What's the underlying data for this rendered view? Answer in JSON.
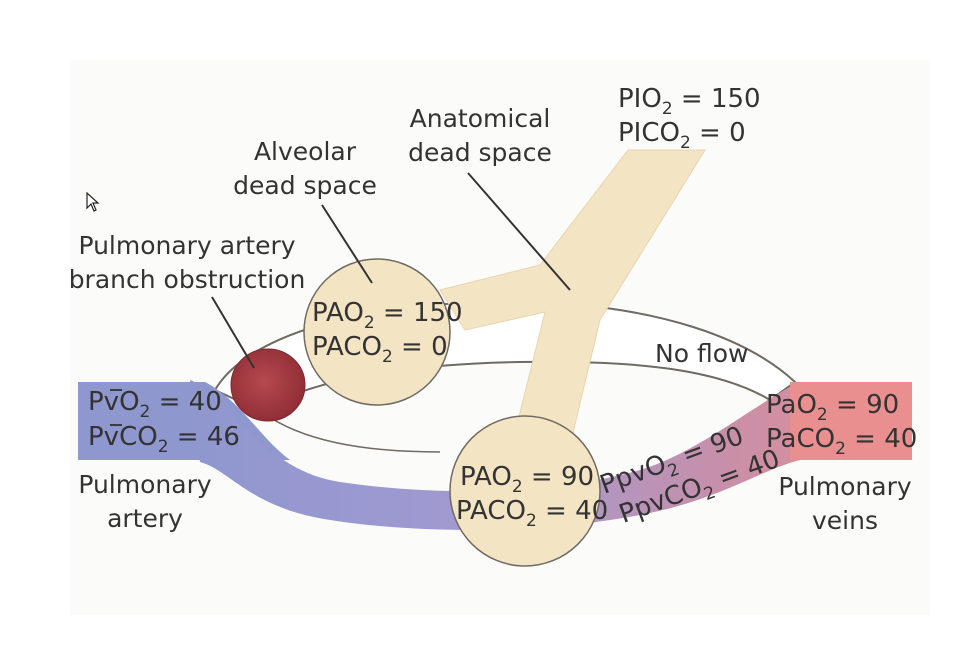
{
  "labels": {
    "anatomical_dead_space": [
      "Anatomical",
      "dead space"
    ],
    "alveolar_dead_space": [
      "Alveolar",
      "dead space"
    ],
    "obstruction": [
      "Pulmonary artery",
      "branch obstruction"
    ],
    "no_flow": "No flow",
    "pulmonary_artery": [
      "Pulmonary",
      "artery"
    ],
    "pulmonary_veins": [
      "Pulmonary",
      "veins"
    ]
  },
  "values": {
    "inspired": {
      "o2": [
        "PIO",
        "2",
        " = 150"
      ],
      "co2": [
        "PICO",
        "2",
        " = 0"
      ]
    },
    "dead_alveolus": {
      "o2": [
        "PAO",
        "2",
        " = 150"
      ],
      "co2": [
        "PACO",
        "2",
        " = 0"
      ]
    },
    "normal_alveolus": {
      "o2": [
        "PAO",
        "2",
        " = 90"
      ],
      "co2": [
        "PACO",
        "2",
        " = 40"
      ]
    },
    "mixed_venous": {
      "o2": [
        "PvO",
        "2",
        " = 40"
      ],
      "co2": [
        "PvCO",
        "2",
        " = 46"
      ]
    },
    "capillary": {
      "o2": [
        "PpvO",
        "2",
        " = 90"
      ],
      "co2": [
        "PpvCO",
        "2",
        " = 40"
      ]
    },
    "arterial": {
      "o2": [
        "PaO",
        "2",
        " = 90"
      ],
      "co2": [
        "PaCO",
        "2",
        " = 40"
      ]
    }
  },
  "colors": {
    "airway": "#f3e4c4",
    "airway_edge": "#6f6a62",
    "venous": "#8f97cf",
    "arterial": "#e98f8f",
    "clot": "#a6383f",
    "text": "#333333"
  },
  "icons": {
    "cursor": "arrow-cursor-icon"
  }
}
